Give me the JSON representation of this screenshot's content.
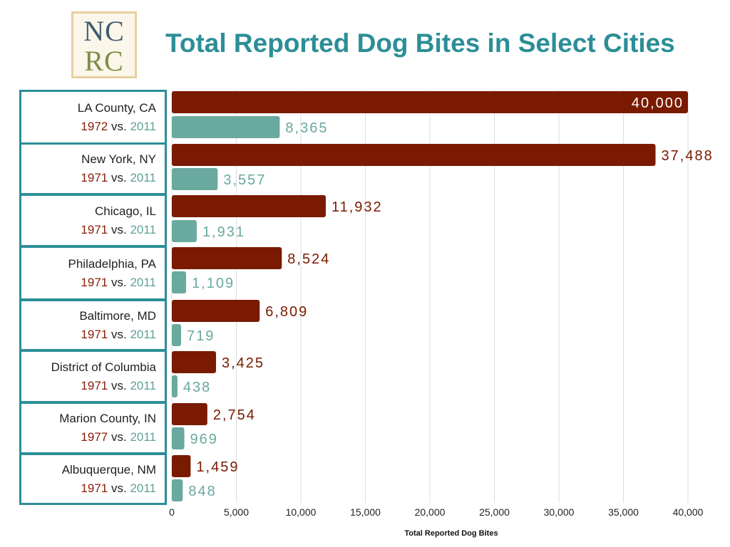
{
  "logo": {
    "line1": "NC",
    "line2": "RC"
  },
  "title": "Total Reported Dog Bites in Select Cities",
  "colors": {
    "old": "#7a1a00",
    "new": "#6aa99f",
    "accent": "#2c8e97"
  },
  "rows": [
    {
      "city": "LA County, CA",
      "year_old": "1972",
      "vs": "vs.",
      "year_new": "2011"
    },
    {
      "city": "New York, NY",
      "year_old": "1971",
      "vs": "vs.",
      "year_new": "2011"
    },
    {
      "city": "Chicago, IL",
      "year_old": "1971",
      "vs": "vs.",
      "year_new": "2011"
    },
    {
      "city": "Philadelphia, PA",
      "year_old": "1971",
      "vs": "vs.",
      "year_new": "2011"
    },
    {
      "city": "Baltimore, MD",
      "year_old": "1971",
      "vs": "vs.",
      "year_new": "2011"
    },
    {
      "city": "District of Columbia",
      "year_old": "1971",
      "vs": "vs.",
      "year_new": "2011"
    },
    {
      "city": "Marion County, IN",
      "year_old": "1977",
      "vs": "vs.",
      "year_new": "2011"
    },
    {
      "city": "Albuquerque, NM",
      "year_old": "1971",
      "vs": "vs.",
      "year_new": "2011"
    }
  ],
  "chart_data": {
    "type": "bar",
    "orientation": "horizontal",
    "title": "Total Reported Dog Bites in Select Cities",
    "xlabel": "Total Reported Dog Bites",
    "ylabel": "",
    "xlim": [
      0,
      40000
    ],
    "ticks": [
      "0",
      "5,000",
      "10,000",
      "15,000",
      "20,000",
      "25,000",
      "30,000",
      "35,000",
      "40,000"
    ],
    "grid": true,
    "categories": [
      "LA County, CA",
      "New York, NY",
      "Chicago, IL",
      "Philadelphia, PA",
      "Baltimore, MD",
      "District of Columbia",
      "Marion County, IN",
      "Albuquerque, NM"
    ],
    "series": [
      {
        "values": [
          40000,
          37488,
          11932,
          8524,
          6809,
          3425,
          2754,
          1459
        ],
        "labels": [
          "40,000",
          "37,488",
          "11,932",
          "8,524",
          "6,809",
          "3,425",
          "2,754",
          "1,459"
        ]
      },
      {
        "values": [
          8365,
          3557,
          1931,
          1109,
          719,
          438,
          969,
          848
        ],
        "labels": [
          "8,365",
          "3,557",
          "1,931",
          "1,109",
          "719",
          "438",
          "969",
          "848"
        ]
      }
    ]
  }
}
